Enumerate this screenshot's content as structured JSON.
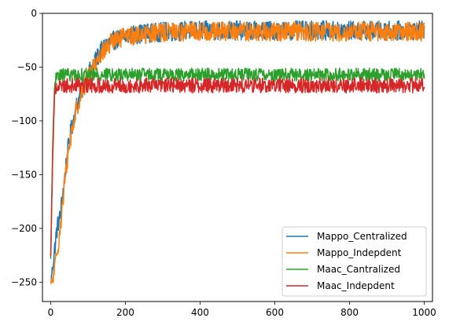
{
  "chart_data": {
    "type": "line",
    "title": "",
    "xlabel": "",
    "ylabel": "",
    "xlim": [
      -22,
      1022
    ],
    "ylim": [
      -268,
      0
    ],
    "xticks": [
      0,
      200,
      400,
      600,
      800,
      1000
    ],
    "yticks": [
      0,
      -50,
      -100,
      -150,
      -200,
      -250
    ],
    "xtick_labels": [
      "0",
      "200",
      "400",
      "600",
      "800",
      "1000"
    ],
    "ytick_labels": [
      "0",
      "−50",
      "−100",
      "−150",
      "−200",
      "−250"
    ],
    "grid": false,
    "legend": {
      "position": "lower-right",
      "entries": [
        "Mappo_Centralized",
        "Mappo_Indepdent",
        "Maac_Cantralized",
        "Maac_Indepdent"
      ]
    },
    "series": [
      {
        "name": "Mappo_Centralized",
        "color": "#1f77b4",
        "x": [
          0,
          5,
          10,
          15,
          20,
          25,
          30,
          35,
          40,
          45,
          50,
          55,
          60,
          65,
          70,
          75,
          80,
          90,
          100,
          110,
          120,
          130,
          140,
          150,
          160,
          170,
          180,
          190,
          200,
          220,
          240,
          260,
          280,
          300,
          320,
          340,
          360,
          380,
          400,
          420,
          440,
          460,
          480,
          500,
          520,
          540,
          560,
          580,
          600,
          620,
          640,
          660,
          680,
          700,
          720,
          740,
          760,
          780,
          800,
          820,
          840,
          860,
          880,
          900,
          920,
          940,
          960,
          980,
          1000
        ],
        "y": [
          -252,
          -235,
          -222,
          -205,
          -195,
          -190,
          -175,
          -160,
          -145,
          -130,
          -118,
          -108,
          -100,
          -92,
          -85,
          -80,
          -75,
          -66,
          -58,
          -50,
          -44,
          -38,
          -33,
          -29,
          -27,
          -25,
          -24,
          -22,
          -21,
          -20,
          -19,
          -18,
          -18,
          -17,
          -17,
          -17,
          -16,
          -16,
          -16,
          -16,
          -16,
          -16,
          -16,
          -16,
          -16,
          -16,
          -16,
          -16,
          -16,
          -16,
          -16,
          -16,
          -16,
          -16,
          -16,
          -16,
          -16,
          -16,
          -16,
          -16,
          -16,
          -16,
          -16,
          -16,
          -16,
          -16,
          -16,
          -16,
          -16
        ]
      },
      {
        "name": "Mappo_Indepdent",
        "color": "#ff7f0e",
        "x": [
          0,
          5,
          10,
          15,
          20,
          25,
          30,
          35,
          40,
          45,
          50,
          55,
          60,
          65,
          70,
          75,
          80,
          90,
          100,
          110,
          120,
          130,
          140,
          150,
          160,
          170,
          180,
          190,
          200,
          220,
          240,
          260,
          280,
          300,
          320,
          340,
          360,
          380,
          400,
          420,
          440,
          460,
          480,
          500,
          520,
          540,
          560,
          580,
          600,
          620,
          640,
          660,
          680,
          700,
          720,
          740,
          760,
          780,
          800,
          820,
          840,
          860,
          880,
          900,
          920,
          940,
          960,
          980,
          1000
        ],
        "y": [
          -252,
          -248,
          -240,
          -228,
          -215,
          -200,
          -185,
          -168,
          -150,
          -135,
          -122,
          -112,
          -103,
          -95,
          -88,
          -82,
          -77,
          -68,
          -60,
          -52,
          -46,
          -40,
          -35,
          -31,
          -28,
          -26,
          -25,
          -23,
          -22,
          -21,
          -20,
          -19,
          -18,
          -18,
          -17,
          -17,
          -17,
          -17,
          -17,
          -17,
          -17,
          -17,
          -17,
          -17,
          -17,
          -17,
          -17,
          -17,
          -17,
          -17,
          -17,
          -17,
          -17,
          -17,
          -17,
          -17,
          -17,
          -17,
          -17,
          -17,
          -17,
          -17,
          -17,
          -17,
          -17,
          -17,
          -17,
          -17,
          -17
        ]
      },
      {
        "name": "Maac_Cantralized",
        "color": "#2ca02c",
        "x": [
          0,
          3,
          6,
          9,
          12,
          15,
          20,
          25,
          30,
          40,
          50,
          60,
          80,
          100,
          120,
          140,
          160,
          180,
          200,
          250,
          300,
          350,
          400,
          450,
          500,
          550,
          600,
          650,
          700,
          750,
          800,
          850,
          900,
          950,
          1000
        ],
        "y": [
          -230,
          -170,
          -110,
          -80,
          -65,
          -60,
          -58,
          -57,
          -57,
          -57,
          -57,
          -57,
          -57,
          -57,
          -57,
          -57,
          -57,
          -57,
          -57,
          -57,
          -57,
          -57,
          -57,
          -57,
          -57,
          -57,
          -57,
          -57,
          -57,
          -57,
          -57,
          -57,
          -57,
          -57,
          -57
        ]
      },
      {
        "name": "Maac_Indepdent",
        "color": "#d62728",
        "x": [
          0,
          3,
          6,
          9,
          12,
          15,
          20,
          25,
          30,
          40,
          50,
          60,
          80,
          100,
          120,
          140,
          160,
          180,
          200,
          250,
          300,
          350,
          400,
          450,
          500,
          550,
          600,
          650,
          700,
          750,
          800,
          850,
          900,
          950,
          1000
        ],
        "y": [
          -228,
          -175,
          -125,
          -90,
          -72,
          -68,
          -67,
          -67,
          -67,
          -67,
          -67,
          -67,
          -67,
          -67,
          -67,
          -67,
          -67,
          -67,
          -67,
          -67,
          -67,
          -67,
          -67,
          -67,
          -67,
          -67,
          -67,
          -67,
          -67,
          -67,
          -67,
          -67,
          -67,
          -67,
          -67
        ]
      }
    ]
  }
}
